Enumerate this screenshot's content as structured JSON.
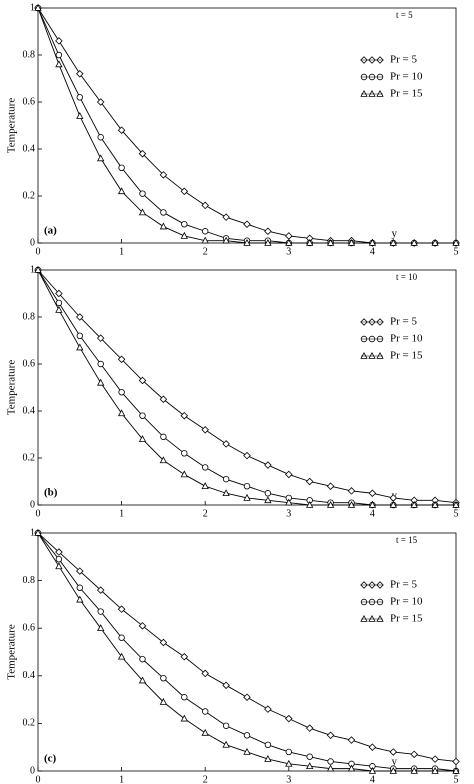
{
  "chart_data": [
    {
      "type": "line",
      "annotation": "t = 5",
      "panel_label": "(a)",
      "x_label": "y",
      "y_label": "Temperature",
      "xlim": [
        0,
        5
      ],
      "ylim": [
        0,
        1
      ],
      "xticks": [
        0,
        1,
        2,
        3,
        4,
        5
      ],
      "yticks": [
        0,
        0.2,
        0.4,
        0.6,
        0.8,
        1
      ],
      "legend": "right",
      "x": [
        0,
        0.25,
        0.5,
        0.75,
        1,
        1.25,
        1.5,
        1.75,
        2,
        2.25,
        2.5,
        2.75,
        3,
        3.25,
        3.5,
        3.75,
        4,
        4.25,
        4.5,
        4.75,
        5
      ],
      "series": [
        {
          "name": "Pr = 5",
          "color": "#000000",
          "marker": "diamond",
          "values": [
            1,
            0.86,
            0.72,
            0.6,
            0.48,
            0.38,
            0.29,
            0.22,
            0.16,
            0.11,
            0.08,
            0.05,
            0.03,
            0.02,
            0.01,
            0.01,
            0,
            0,
            0,
            0,
            0
          ]
        },
        {
          "name": "Pr = 10",
          "color": "#000000",
          "marker": "circle",
          "values": [
            1,
            0.8,
            0.62,
            0.45,
            0.32,
            0.21,
            0.13,
            0.08,
            0.05,
            0.02,
            0.01,
            0.01,
            0,
            0,
            0,
            0,
            0,
            0,
            0,
            0,
            0
          ]
        },
        {
          "name": "Pr = 15",
          "color": "#000000",
          "marker": "triangle",
          "values": [
            1,
            0.76,
            0.54,
            0.36,
            0.22,
            0.13,
            0.07,
            0.03,
            0.01,
            0.01,
            0,
            0,
            0,
            0,
            0,
            0,
            0,
            0,
            0,
            0,
            0
          ]
        }
      ]
    },
    {
      "type": "line",
      "annotation": "t = 10",
      "panel_label": "(b)",
      "x_label": "y",
      "y_label": "Temperature",
      "xlim": [
        0,
        5
      ],
      "ylim": [
        0,
        1
      ],
      "xticks": [
        0,
        1,
        2,
        3,
        4,
        5
      ],
      "yticks": [
        0,
        0.2,
        0.4,
        0.6,
        0.8,
        1
      ],
      "legend": "right",
      "x": [
        0,
        0.25,
        0.5,
        0.75,
        1,
        1.25,
        1.5,
        1.75,
        2,
        2.25,
        2.5,
        2.75,
        3,
        3.25,
        3.5,
        3.75,
        4,
        4.25,
        4.5,
        4.75,
        5
      ],
      "series": [
        {
          "name": "Pr = 5",
          "color": "#000000",
          "marker": "diamond",
          "values": [
            1,
            0.9,
            0.8,
            0.71,
            0.62,
            0.53,
            0.45,
            0.38,
            0.32,
            0.26,
            0.21,
            0.17,
            0.13,
            0.1,
            0.08,
            0.06,
            0.05,
            0.03,
            0.02,
            0.02,
            0.01
          ]
        },
        {
          "name": "Pr = 10",
          "color": "#000000",
          "marker": "circle",
          "values": [
            1,
            0.86,
            0.72,
            0.6,
            0.48,
            0.38,
            0.29,
            0.22,
            0.16,
            0.11,
            0.08,
            0.05,
            0.03,
            0.02,
            0.01,
            0.01,
            0,
            0,
            0,
            0,
            0
          ]
        },
        {
          "name": "Pr = 15",
          "color": "#000000",
          "marker": "triangle",
          "values": [
            1,
            0.83,
            0.67,
            0.52,
            0.39,
            0.28,
            0.19,
            0.13,
            0.08,
            0.05,
            0.03,
            0.02,
            0.01,
            0,
            0,
            0,
            0,
            0,
            0,
            0,
            0
          ]
        }
      ]
    },
    {
      "type": "line",
      "annotation": "t = 15",
      "panel_label": "(c)",
      "x_label": "y",
      "y_label": "Temperature",
      "xlim": [
        0,
        5
      ],
      "ylim": [
        0,
        1
      ],
      "xticks": [
        0,
        1,
        2,
        3,
        4,
        5
      ],
      "yticks": [
        0,
        0.2,
        0.4,
        0.6,
        0.8,
        1
      ],
      "legend": "right",
      "x": [
        0,
        0.25,
        0.5,
        0.75,
        1,
        1.25,
        1.5,
        1.75,
        2,
        2.25,
        2.5,
        2.75,
        3,
        3.25,
        3.5,
        3.75,
        4,
        4.25,
        4.5,
        4.75,
        5
      ],
      "series": [
        {
          "name": "Pr = 5",
          "color": "#000000",
          "marker": "diamond",
          "values": [
            1,
            0.92,
            0.84,
            0.76,
            0.68,
            0.61,
            0.54,
            0.48,
            0.41,
            0.36,
            0.31,
            0.26,
            0.22,
            0.18,
            0.15,
            0.13,
            0.1,
            0.08,
            0.07,
            0.05,
            0.04
          ]
        },
        {
          "name": "Pr = 10",
          "color": "#000000",
          "marker": "circle",
          "values": [
            1,
            0.89,
            0.77,
            0.67,
            0.56,
            0.47,
            0.39,
            0.31,
            0.25,
            0.19,
            0.15,
            0.11,
            0.08,
            0.06,
            0.04,
            0.03,
            0.02,
            0.01,
            0.01,
            0.01,
            0
          ]
        },
        {
          "name": "Pr = 15",
          "color": "#000000",
          "marker": "triangle",
          "values": [
            1,
            0.86,
            0.72,
            0.6,
            0.48,
            0.38,
            0.29,
            0.22,
            0.16,
            0.11,
            0.08,
            0.05,
            0.03,
            0.02,
            0.01,
            0.01,
            0,
            0,
            0,
            0,
            0
          ]
        }
      ]
    }
  ]
}
